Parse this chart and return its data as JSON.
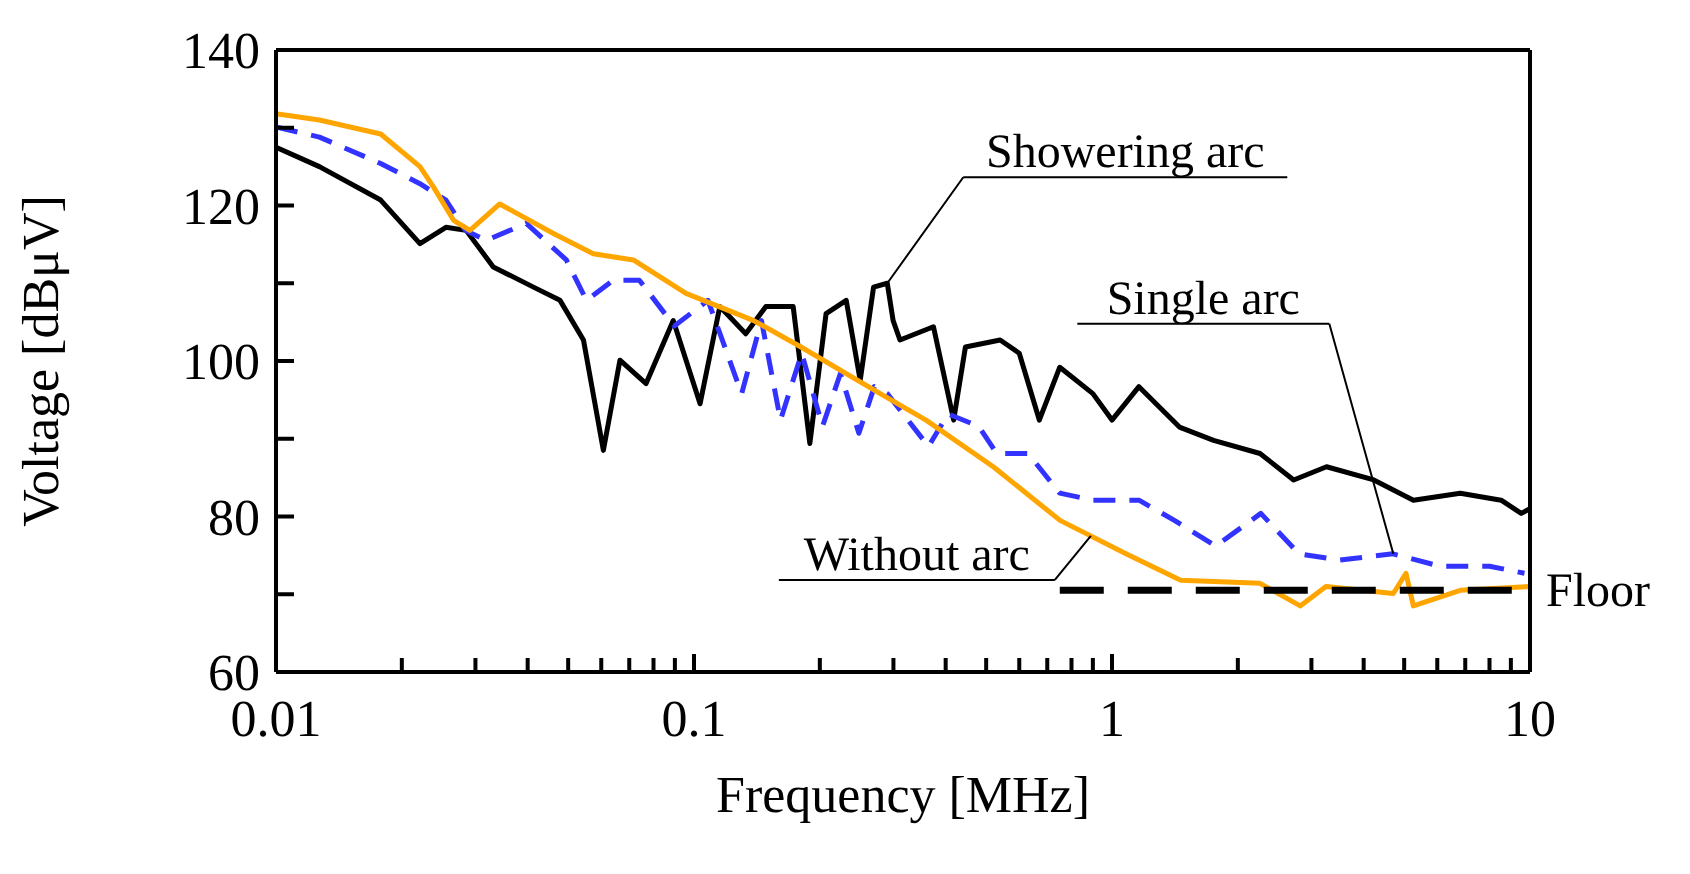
{
  "chart_data": {
    "type": "line",
    "xlabel": "Frequency [MHz]",
    "ylabel": "Voltage [dBμV]",
    "log": "x",
    "xlim": [
      0.01,
      10
    ],
    "ylim": [
      60,
      140
    ],
    "xticks": [
      0.01,
      {
        "value": 0.02,
        "label": null
      },
      {
        "value": 0.03,
        "label": null
      },
      {
        "value": 0.04,
        "label": null
      },
      {
        "value": 0.05,
        "label": null
      },
      {
        "value": 0.06,
        "label": null
      },
      {
        "value": 0.07,
        "label": null
      },
      {
        "value": 0.08,
        "label": null
      },
      {
        "value": 0.09,
        "label": null
      },
      0.1,
      {
        "value": 0.2,
        "label": null
      },
      {
        "value": 0.3,
        "label": null
      },
      {
        "value": 0.4,
        "label": null
      },
      {
        "value": 0.5,
        "label": null
      },
      {
        "value": 0.6,
        "label": null
      },
      {
        "value": 0.7,
        "label": null
      },
      {
        "value": 0.8,
        "label": null
      },
      {
        "value": 0.9,
        "label": null
      },
      1,
      {
        "value": 2,
        "label": null
      },
      {
        "value": 3,
        "label": null
      },
      {
        "value": 4,
        "label": null
      },
      {
        "value": 5,
        "label": null
      },
      {
        "value": 6,
        "label": null
      },
      {
        "value": 7,
        "label": null
      },
      {
        "value": 8,
        "label": null
      },
      {
        "value": 9,
        "label": null
      },
      10
    ],
    "yticks": [
      60,
      {
        "value": 70,
        "label": null
      },
      80,
      {
        "value": 90,
        "label": null
      },
      100,
      {
        "value": 110,
        "label": null
      },
      120,
      {
        "value": 130,
        "label": null
      },
      140
    ],
    "marker": "none",
    "series": [
      {
        "color": "#000000",
        "line_style": "solid",
        "x": [
          0.01,
          0.0127,
          0.0178,
          0.0221,
          0.0255,
          0.0285,
          0.0331,
          0.0413,
          0.0478,
          0.0544,
          0.0607,
          0.0665,
          0.0768,
          0.0892,
          0.1034,
          0.1153,
          0.133,
          0.1486,
          0.1727,
          0.1893,
          0.207,
          0.2313,
          0.2498,
          0.2689,
          0.29,
          0.2995,
          0.311,
          0.374,
          0.418,
          0.446,
          0.54,
          0.6,
          0.67,
          0.75,
          0.9,
          1.0,
          1.16,
          1.45,
          1.75,
          2.26,
          2.72,
          3.26,
          4.23,
          5.26,
          6.81,
          8.53,
          9.53,
          10
        ],
        "values": [
          127.5,
          125,
          120.7,
          115.1,
          117.2,
          116.8,
          112.1,
          109.5,
          107.8,
          102.7,
          88.5,
          100.1,
          97.1,
          105.2,
          94.5,
          107,
          103.5,
          107,
          107,
          89.4,
          106.1,
          107.8,
          97.5,
          109.5,
          110,
          105.2,
          102.7,
          104.4,
          92.4,
          101.8,
          102.7,
          101,
          92.4,
          99.2,
          95.8,
          92.4,
          96.7,
          91.5,
          89.8,
          88.1,
          84.7,
          86.4,
          84.7,
          82.1,
          83,
          82.1,
          80.4,
          81
        ]
      },
      {
        "color": "#3333ff",
        "line_style": "dashed",
        "x": [
          0.01,
          0.0127,
          0.0178,
          0.0221,
          0.0255,
          0.0284,
          0.0318,
          0.0397,
          0.0495,
          0.0553,
          0.0641,
          0.074,
          0.0897,
          0.108,
          0.13,
          0.145,
          0.161,
          0.181,
          0.203,
          0.224,
          0.248,
          0.27,
          0.29,
          0.364,
          0.405,
          0.48,
          0.53,
          0.63,
          0.75,
          0.9,
          1.16,
          1.41,
          1.77,
          2.27,
          2.8,
          3.5,
          4.7,
          6.1,
          8.0,
          9.7
        ],
        "values": [
          130.1,
          128.8,
          125.4,
          122.8,
          120.7,
          116.8,
          115.5,
          117.7,
          113,
          107.8,
          110.4,
          110.4,
          104.5,
          107.8,
          95.8,
          105.2,
          92.4,
          101,
          91.6,
          98.4,
          90.7,
          96.7,
          95.8,
          89,
          93.2,
          91.6,
          88.1,
          88.1,
          83,
          82.1,
          82.1,
          79.5,
          76.2,
          80.4,
          75.2,
          74.4,
          75.2,
          73.6,
          73.6,
          72.7
        ]
      },
      {
        "color": "#ffa500",
        "line_style": "solid",
        "x": [
          0.01,
          0.0127,
          0.0178,
          0.0221,
          0.0238,
          0.0266,
          0.0291,
          0.0343,
          0.0461,
          0.0574,
          0.0716,
          0.0957,
          0.139,
          0.179,
          0.279,
          0.359,
          0.52,
          0.751,
          1.08,
          1.46,
          2.26,
          2.82,
          3.25,
          4.71,
          5.05,
          5.26,
          6.81,
          10
        ],
        "values": [
          131.8,
          131,
          129.2,
          125,
          122.4,
          118.1,
          116.8,
          120.2,
          116.4,
          113.8,
          113,
          108.7,
          105.2,
          101.9,
          95.8,
          92.4,
          86.4,
          79.5,
          75.2,
          71.8,
          71.4,
          68.5,
          71,
          70.1,
          72.7,
          68.5,
          70.5,
          71
        ]
      },
      {
        "color": "#000000",
        "line_style": "dashed",
        "x": [
          0.75,
          10
        ],
        "values": [
          70.5,
          70.5
        ]
      }
    ],
    "annotations": [
      {
        "text": "Showering arc",
        "x": 0.29,
        "y": 110
      },
      {
        "text": "Single arc",
        "x": 4.71,
        "y": 75.2
      },
      {
        "text": "Without arc",
        "x": 0.89,
        "y": 77.5
      },
      {
        "text": "Floor",
        "x": 10,
        "y": 70.5
      }
    ]
  }
}
